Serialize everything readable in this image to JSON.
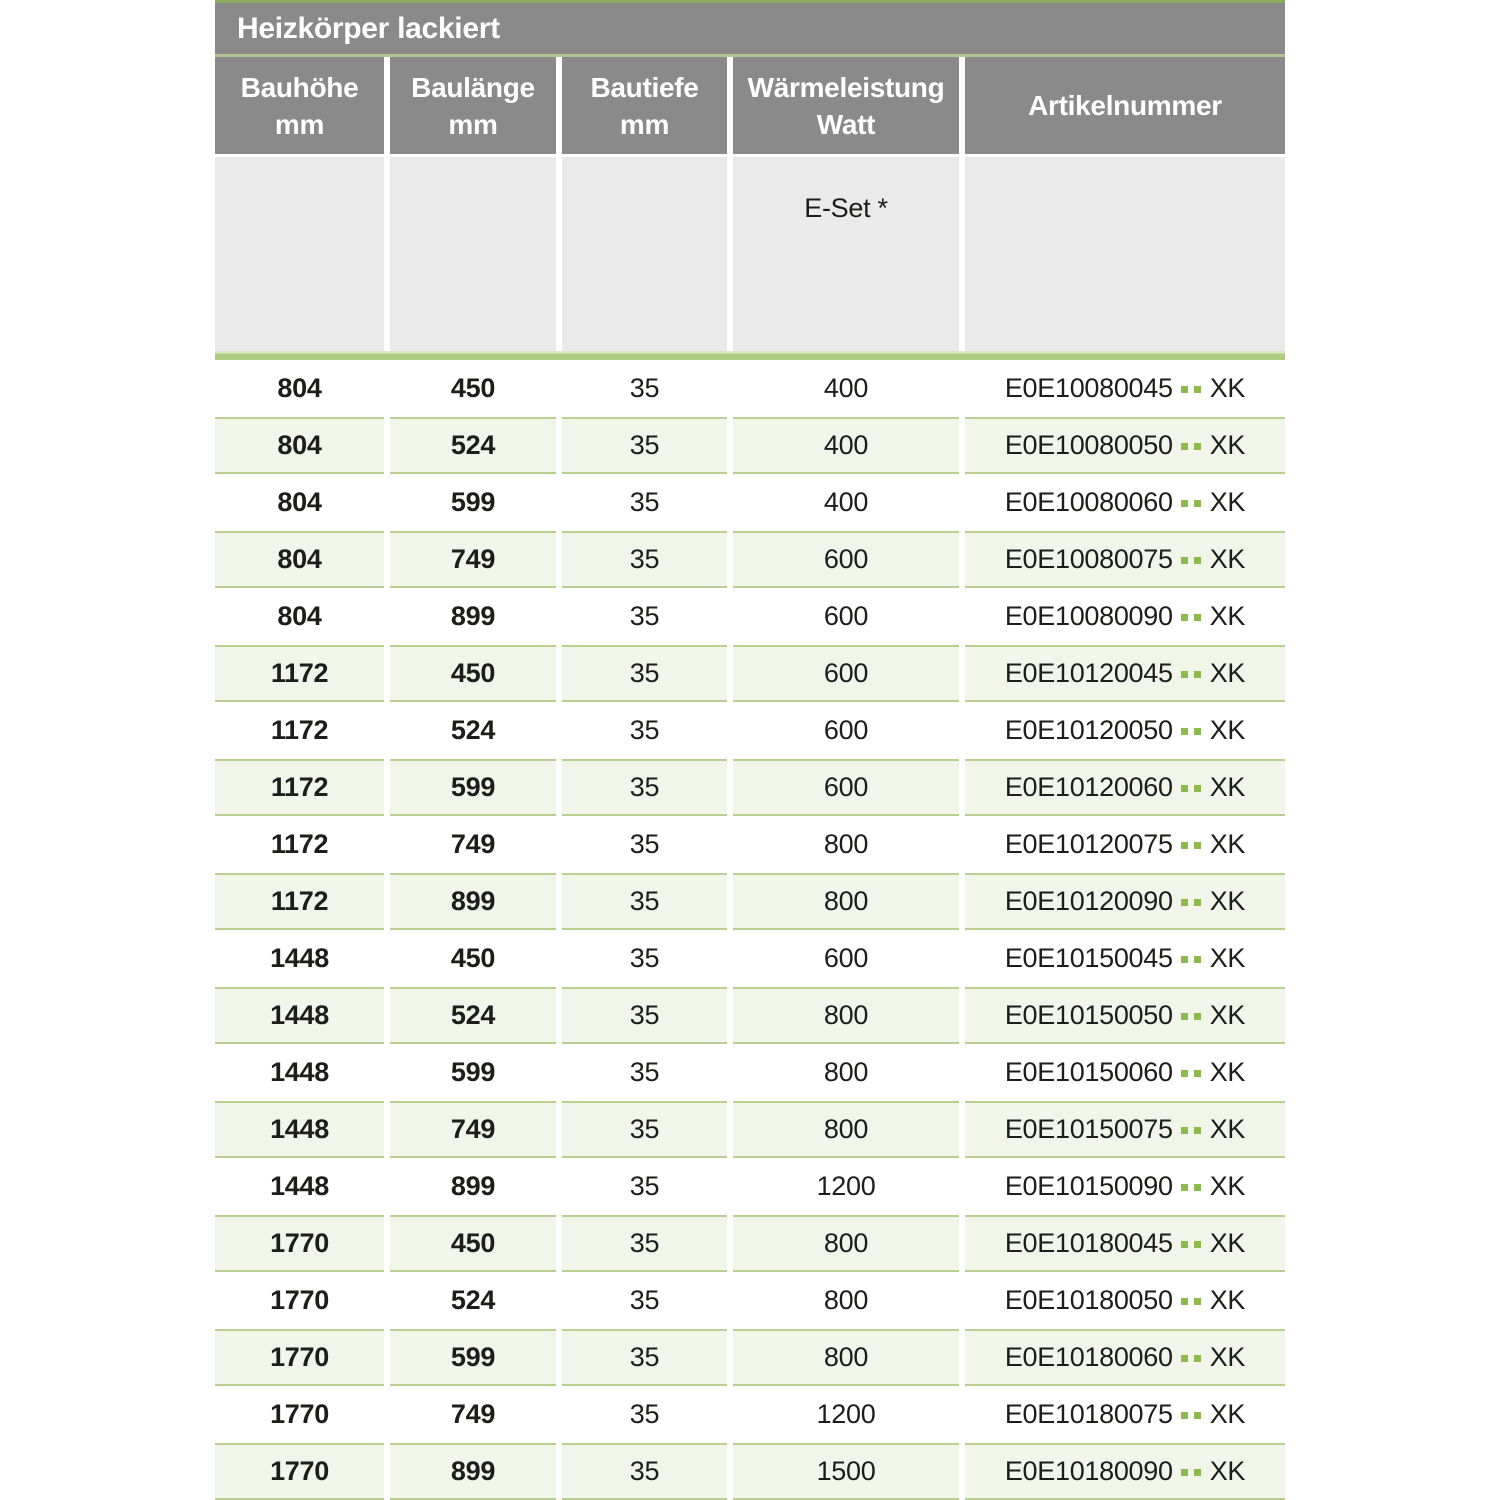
{
  "table": {
    "title": "Heizkörper lackiert",
    "columns": [
      {
        "line1": "Bauhöhe",
        "line2": "mm"
      },
      {
        "line1": "Baulänge",
        "line2": "mm"
      },
      {
        "line1": "Bautiefe",
        "line2": "mm"
      },
      {
        "line1": "Wärmeleistung",
        "line2": "Watt"
      },
      {
        "line1": "Artikelnummer",
        "line2": ""
      }
    ],
    "subheader_eset": "E-Set *",
    "artikel_dots": "..",
    "rows": [
      {
        "bauhoehe": "804",
        "baulaenge": "450",
        "bautiefe": "35",
        "watt": "400",
        "artikel_prefix": "E0E10080045",
        "artikel_suffix": "XK"
      },
      {
        "bauhoehe": "804",
        "baulaenge": "524",
        "bautiefe": "35",
        "watt": "400",
        "artikel_prefix": "E0E10080050",
        "artikel_suffix": "XK"
      },
      {
        "bauhoehe": "804",
        "baulaenge": "599",
        "bautiefe": "35",
        "watt": "400",
        "artikel_prefix": "E0E10080060",
        "artikel_suffix": "XK"
      },
      {
        "bauhoehe": "804",
        "baulaenge": "749",
        "bautiefe": "35",
        "watt": "600",
        "artikel_prefix": "E0E10080075",
        "artikel_suffix": "XK"
      },
      {
        "bauhoehe": "804",
        "baulaenge": "899",
        "bautiefe": "35",
        "watt": "600",
        "artikel_prefix": "E0E10080090",
        "artikel_suffix": "XK"
      },
      {
        "bauhoehe": "1172",
        "baulaenge": "450",
        "bautiefe": "35",
        "watt": "600",
        "artikel_prefix": "E0E10120045",
        "artikel_suffix": "XK"
      },
      {
        "bauhoehe": "1172",
        "baulaenge": "524",
        "bautiefe": "35",
        "watt": "600",
        "artikel_prefix": "E0E10120050",
        "artikel_suffix": "XK"
      },
      {
        "bauhoehe": "1172",
        "baulaenge": "599",
        "bautiefe": "35",
        "watt": "600",
        "artikel_prefix": "E0E10120060",
        "artikel_suffix": "XK"
      },
      {
        "bauhoehe": "1172",
        "baulaenge": "749",
        "bautiefe": "35",
        "watt": "800",
        "artikel_prefix": "E0E10120075",
        "artikel_suffix": "XK"
      },
      {
        "bauhoehe": "1172",
        "baulaenge": "899",
        "bautiefe": "35",
        "watt": "800",
        "artikel_prefix": "E0E10120090",
        "artikel_suffix": "XK"
      },
      {
        "bauhoehe": "1448",
        "baulaenge": "450",
        "bautiefe": "35",
        "watt": "600",
        "artikel_prefix": "E0E10150045",
        "artikel_suffix": "XK"
      },
      {
        "bauhoehe": "1448",
        "baulaenge": "524",
        "bautiefe": "35",
        "watt": "800",
        "artikel_prefix": "E0E10150050",
        "artikel_suffix": "XK"
      },
      {
        "bauhoehe": "1448",
        "baulaenge": "599",
        "bautiefe": "35",
        "watt": "800",
        "artikel_prefix": "E0E10150060",
        "artikel_suffix": "XK"
      },
      {
        "bauhoehe": "1448",
        "baulaenge": "749",
        "bautiefe": "35",
        "watt": "800",
        "artikel_prefix": "E0E10150075",
        "artikel_suffix": "XK"
      },
      {
        "bauhoehe": "1448",
        "baulaenge": "899",
        "bautiefe": "35",
        "watt": "1200",
        "artikel_prefix": "E0E10150090",
        "artikel_suffix": "XK"
      },
      {
        "bauhoehe": "1770",
        "baulaenge": "450",
        "bautiefe": "35",
        "watt": "800",
        "artikel_prefix": "E0E10180045",
        "artikel_suffix": "XK"
      },
      {
        "bauhoehe": "1770",
        "baulaenge": "524",
        "bautiefe": "35",
        "watt": "800",
        "artikel_prefix": "E0E10180050",
        "artikel_suffix": "XK"
      },
      {
        "bauhoehe": "1770",
        "baulaenge": "599",
        "bautiefe": "35",
        "watt": "800",
        "artikel_prefix": "E0E10180060",
        "artikel_suffix": "XK"
      },
      {
        "bauhoehe": "1770",
        "baulaenge": "749",
        "bautiefe": "35",
        "watt": "1200",
        "artikel_prefix": "E0E10180075",
        "artikel_suffix": "XK"
      },
      {
        "bauhoehe": "1770",
        "baulaenge": "899",
        "bautiefe": "35",
        "watt": "1500",
        "artikel_prefix": "E0E10180090",
        "artikel_suffix": "XK"
      }
    ],
    "colors": {
      "header_gray": "#8a8a8a",
      "subheader_gray": "#eaeaea",
      "separator_green": "#b0cc81",
      "row_green_fill": "#f2f5e9",
      "row_green_border": "#b8cf90",
      "dots_green": "#8dbb4b",
      "top_strip_green": "#8aab5d"
    }
  }
}
